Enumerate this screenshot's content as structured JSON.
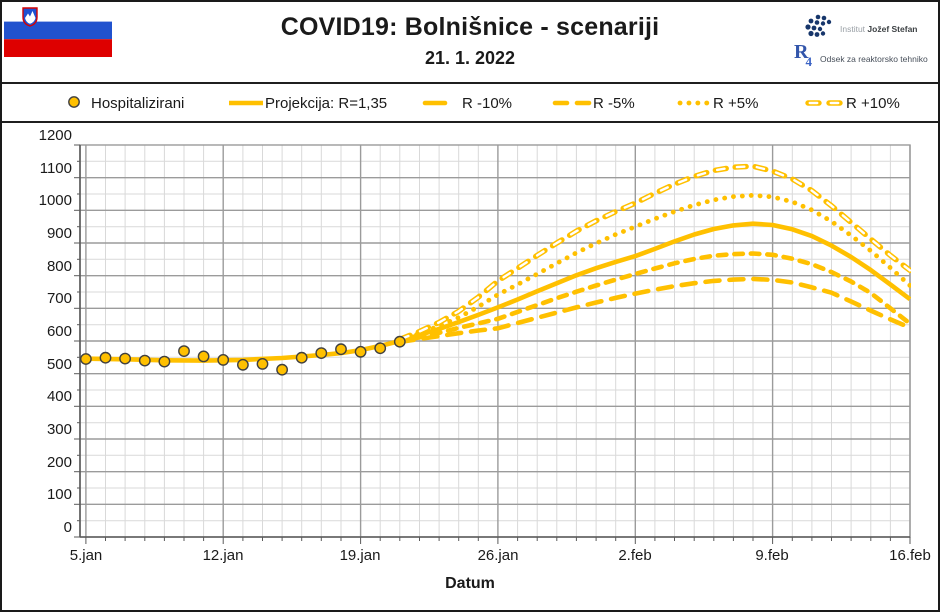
{
  "header": {
    "title": "COVID19: Bolnišnice - scenariji",
    "date": "21. 1. 2022",
    "institute": {
      "prefix": "Institut",
      "name": "Jožef Stefan"
    },
    "department": {
      "logo_main": "R",
      "logo_sub": "4",
      "name": "Odsek za reaktorsko tehniko"
    },
    "flag": {
      "country": "Slovenia",
      "white": "#FFFFFF",
      "blue": "#2152CE",
      "red": "#DE0000"
    }
  },
  "legend": {
    "items": [
      {
        "label": "Hospitalizirani",
        "marker": "circle-marker"
      },
      {
        "label": "Projekcija: R=1,35",
        "marker": "solid-line"
      },
      {
        "label": "R -10%",
        "marker": "long-dash-line"
      },
      {
        "label": "R -5%",
        "marker": "dash-line"
      },
      {
        "label": "R +5%",
        "marker": "dot-line"
      },
      {
        "label": "R +10%",
        "marker": "open-dash-line"
      }
    ]
  },
  "chart_data": {
    "type": "line",
    "title": "COVID19: Bolnišnice - scenariji",
    "subtitle": "21. 1. 2022",
    "xlabel": "Datum",
    "x_tick_labels": [
      "5.jan",
      "12.jan",
      "19.jan",
      "26.jan",
      "2.feb",
      "9.feb",
      "16.feb"
    ],
    "y_tick_labels": [
      "0",
      "100",
      "200",
      "300",
      "400",
      "500",
      "600",
      "700",
      "800",
      "900",
      "1000",
      "1100",
      "1200"
    ],
    "ylim": [
      0,
      1200
    ],
    "y_major": 100,
    "y_minor": 50,
    "x_domain_days": [
      -0.3,
      42
    ],
    "x_major_every": 7,
    "x_minor_every": 1,
    "x_day0_date": "5.jan",
    "grid": true,
    "legend_position": "top",
    "color": "#FFC000",
    "colors": {
      "grid_minor": "#D9D9D9",
      "grid_major": "#9B9B9B",
      "axis": "#5A5A5A",
      "text": "#1A1A1A"
    },
    "scatter": {
      "name": "Hospitalizirani",
      "days": [
        0,
        1,
        2,
        3,
        4,
        5,
        6,
        7,
        8,
        9,
        10,
        11,
        12,
        13,
        14,
        15,
        16
      ],
      "values": [
        545,
        549,
        546,
        540,
        537,
        569,
        553,
        542,
        527,
        530,
        512,
        549,
        563,
        575,
        567,
        578,
        598
      ],
      "marker_fill": "#FFC000",
      "marker_outline": "#404040"
    },
    "series": [
      {
        "name": "Projekcija: R=1,35",
        "style": "solid",
        "points": [
          [
            -0.25,
            546
          ],
          [
            2,
            544
          ],
          [
            4,
            541
          ],
          [
            6,
            540
          ],
          [
            8,
            542
          ],
          [
            10,
            548
          ],
          [
            12,
            557
          ],
          [
            13,
            563
          ],
          [
            14,
            572
          ],
          [
            15,
            585
          ],
          [
            16,
            600
          ],
          [
            17,
            618
          ],
          [
            18,
            637
          ],
          [
            19,
            658
          ],
          [
            20,
            680
          ],
          [
            21,
            703
          ],
          [
            22,
            727
          ],
          [
            23,
            752
          ],
          [
            24,
            777
          ],
          [
            25,
            801
          ],
          [
            26,
            823
          ],
          [
            27,
            842
          ],
          [
            28,
            860
          ],
          [
            29,
            882
          ],
          [
            30,
            905
          ],
          [
            31,
            926
          ],
          [
            32,
            943
          ],
          [
            33,
            954
          ],
          [
            34,
            959
          ],
          [
            35,
            955
          ],
          [
            36,
            942
          ],
          [
            37,
            921
          ],
          [
            38,
            892
          ],
          [
            39,
            857
          ],
          [
            40,
            817
          ],
          [
            41,
            773
          ],
          [
            42,
            728
          ]
        ]
      },
      {
        "name": "R -10%",
        "style": "long-dash",
        "points": [
          [
            16,
            597
          ],
          [
            17,
            606
          ],
          [
            18,
            615
          ],
          [
            19,
            624
          ],
          [
            20,
            632
          ],
          [
            21,
            639
          ],
          [
            22,
            655
          ],
          [
            23,
            671
          ],
          [
            24,
            687
          ],
          [
            25,
            703
          ],
          [
            26,
            718
          ],
          [
            27,
            732
          ],
          [
            28,
            745
          ],
          [
            29,
            757
          ],
          [
            30,
            768
          ],
          [
            31,
            777
          ],
          [
            32,
            784
          ],
          [
            33,
            788
          ],
          [
            34,
            790
          ],
          [
            35,
            787
          ],
          [
            36,
            779
          ],
          [
            37,
            764
          ],
          [
            38,
            748
          ],
          [
            39,
            721
          ],
          [
            40,
            693
          ],
          [
            41,
            666
          ],
          [
            42,
            641
          ]
        ]
      },
      {
        "name": "R -5%",
        "style": "dash",
        "points": [
          [
            16,
            599
          ],
          [
            17,
            611
          ],
          [
            18,
            625
          ],
          [
            19,
            640
          ],
          [
            20,
            654
          ],
          [
            21,
            668
          ],
          [
            22,
            689
          ],
          [
            23,
            710
          ],
          [
            24,
            731
          ],
          [
            25,
            751
          ],
          [
            26,
            770
          ],
          [
            27,
            788
          ],
          [
            28,
            805
          ],
          [
            29,
            822
          ],
          [
            30,
            838
          ],
          [
            31,
            851
          ],
          [
            32,
            861
          ],
          [
            33,
            866
          ],
          [
            34,
            868
          ],
          [
            35,
            864
          ],
          [
            36,
            852
          ],
          [
            37,
            835
          ],
          [
            38,
            811
          ],
          [
            39,
            782
          ],
          [
            40,
            747
          ],
          [
            41,
            700
          ],
          [
            42,
            653
          ]
        ]
      },
      {
        "name": "R +5%",
        "style": "dot",
        "points": [
          [
            16,
            602
          ],
          [
            17,
            623
          ],
          [
            18,
            646
          ],
          [
            19,
            672
          ],
          [
            20,
            705
          ],
          [
            21,
            742
          ],
          [
            22,
            773
          ],
          [
            23,
            805
          ],
          [
            24,
            838
          ],
          [
            25,
            870
          ],
          [
            26,
            899
          ],
          [
            27,
            926
          ],
          [
            28,
            950
          ],
          [
            29,
            974
          ],
          [
            30,
            996
          ],
          [
            31,
            1016
          ],
          [
            32,
            1032
          ],
          [
            33,
            1042
          ],
          [
            34,
            1046
          ],
          [
            35,
            1041
          ],
          [
            36,
            1026
          ],
          [
            37,
            1001
          ],
          [
            38,
            966
          ],
          [
            39,
            923
          ],
          [
            40,
            876
          ],
          [
            41,
            824
          ],
          [
            42,
            770
          ]
        ]
      },
      {
        "name": "R +10%",
        "style": "open-dash",
        "points": [
          [
            16,
            605
          ],
          [
            17,
            629
          ],
          [
            18,
            657
          ],
          [
            19,
            691
          ],
          [
            20,
            734
          ],
          [
            21,
            784
          ],
          [
            22,
            823
          ],
          [
            23,
            862
          ],
          [
            24,
            900
          ],
          [
            25,
            936
          ],
          [
            26,
            968
          ],
          [
            27,
            996
          ],
          [
            28,
            1022
          ],
          [
            29,
            1052
          ],
          [
            30,
            1080
          ],
          [
            31,
            1104
          ],
          [
            32,
            1122
          ],
          [
            33,
            1132
          ],
          [
            34,
            1135
          ],
          [
            35,
            1120
          ],
          [
            36,
            1096
          ],
          [
            37,
            1060
          ],
          [
            38,
            1014
          ],
          [
            39,
            963
          ],
          [
            40,
            912
          ],
          [
            41,
            862
          ],
          [
            42,
            816
          ]
        ]
      }
    ]
  }
}
